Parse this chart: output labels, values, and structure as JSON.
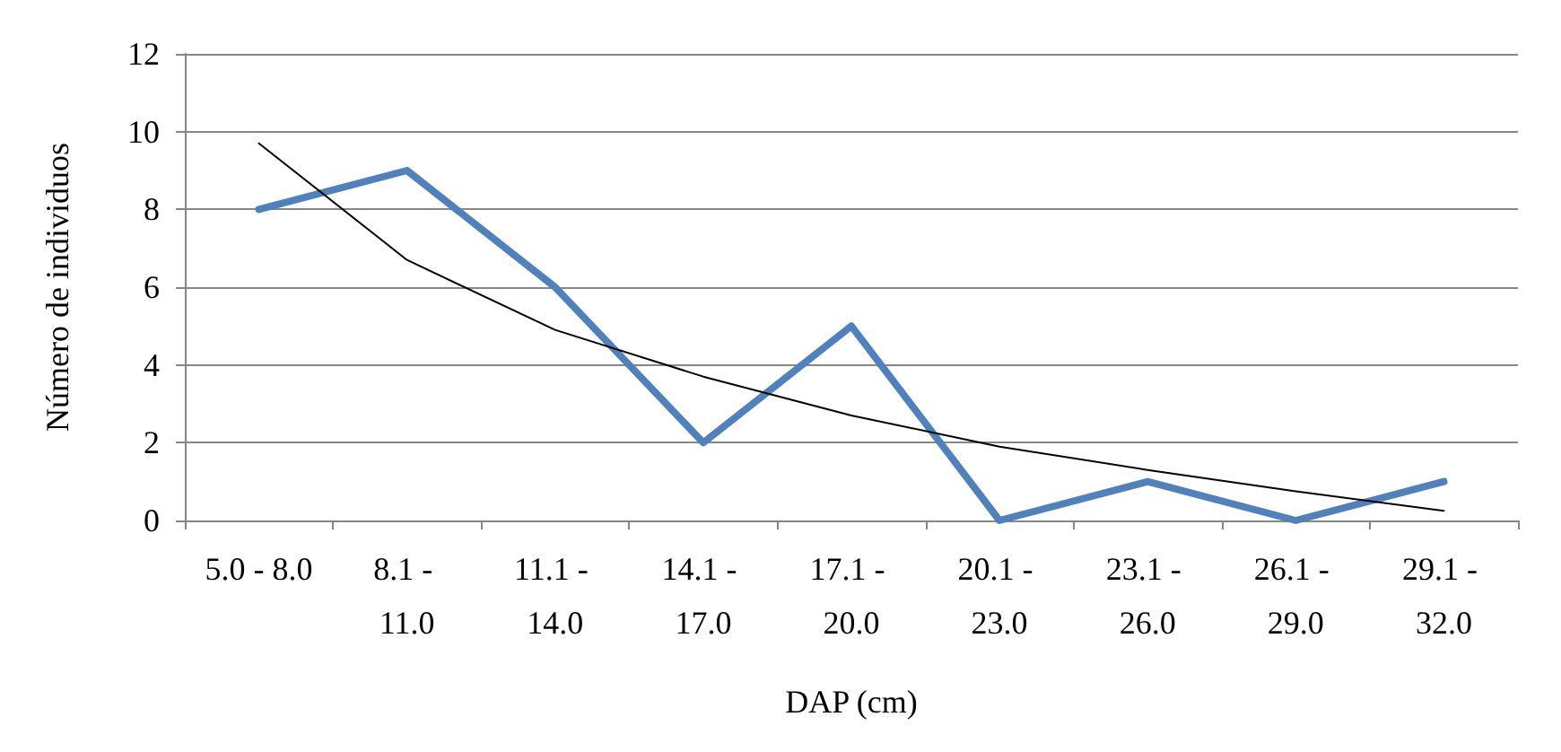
{
  "chart_data": {
    "type": "line",
    "xlabel": "DAP (cm)",
    "ylabel": "Número de individuos",
    "categories": [
      "5.0 - 8.0",
      "8.1 - 11.0",
      "11.1 - 14.0",
      "14.1 - 17.0",
      "17.1 - 20.0",
      "20.1 - 23.0",
      "23.1 - 26.0",
      "26.1 - 29.0",
      "29.1 - 32.0"
    ],
    "series": [
      {
        "color": "#4f81bd",
        "values": [
          8,
          9,
          6,
          2,
          5,
          0,
          1,
          0,
          1
        ]
      },
      {
        "color": "#000000",
        "values": [
          9.7,
          6.7,
          4.9,
          3.7,
          2.7,
          1.9,
          1.3,
          0.75,
          0.25
        ]
      }
    ],
    "ylim": [
      0,
      12
    ],
    "yticks": [
      0,
      2,
      4,
      6,
      8,
      10,
      12
    ],
    "grid": "y",
    "marker": "none",
    "line_style": "solid"
  }
}
